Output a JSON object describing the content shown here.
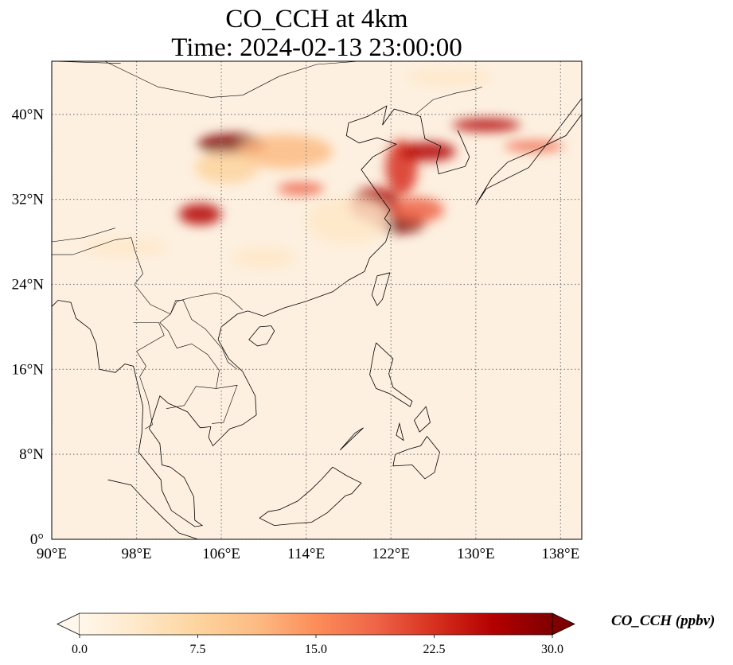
{
  "title": "CO_CCH at 4km",
  "subtitle": "Time: 2024-02-13 23:00:00",
  "map": {
    "extent": {
      "lon": [
        90,
        140
      ],
      "lat": [
        0,
        45
      ]
    },
    "lon_ticks": [
      {
        "value": 90,
        "label": "90°E"
      },
      {
        "value": 98,
        "label": "98°E"
      },
      {
        "value": 106,
        "label": "106°E"
      },
      {
        "value": 114,
        "label": "114°E"
      },
      {
        "value": 122,
        "label": "122°E"
      },
      {
        "value": 130,
        "label": "130°E"
      },
      {
        "value": 138,
        "label": "138°E"
      }
    ],
    "lat_ticks": [
      {
        "value": 0,
        "label": "0°"
      },
      {
        "value": 8,
        "label": "8°N"
      },
      {
        "value": 16,
        "label": "16°N"
      },
      {
        "value": 24,
        "label": "24°N"
      },
      {
        "value": 32,
        "label": "32°N"
      },
      {
        "value": 40,
        "label": "40°N"
      }
    ],
    "gridlines": "dotted",
    "plumes": [
      {
        "lon": 107.0,
        "lat": 37.2,
        "rx": 3.2,
        "ry": 1.0,
        "level": 30
      },
      {
        "lon": 112.0,
        "lat": 36.5,
        "rx": 4.5,
        "ry": 1.6,
        "level": 10
      },
      {
        "lon": 106.5,
        "lat": 35.0,
        "rx": 3.0,
        "ry": 1.5,
        "level": 8
      },
      {
        "lon": 104.0,
        "lat": 30.6,
        "rx": 2.0,
        "ry": 1.0,
        "level": 28
      },
      {
        "lon": 113.5,
        "lat": 33.0,
        "rx": 2.2,
        "ry": 0.6,
        "level": 20
      },
      {
        "lon": 120.5,
        "lat": 31.5,
        "rx": 2.4,
        "ry": 1.6,
        "level": 26
      },
      {
        "lon": 122.8,
        "lat": 29.8,
        "rx": 2.4,
        "ry": 1.0,
        "level": 30
      },
      {
        "lon": 124.5,
        "lat": 31.0,
        "rx": 2.5,
        "ry": 1.2,
        "level": 18
      },
      {
        "lon": 123.0,
        "lat": 35.0,
        "rx": 1.5,
        "ry": 2.6,
        "level": 24
      },
      {
        "lon": 125.5,
        "lat": 36.5,
        "rx": 2.6,
        "ry": 0.9,
        "level": 26
      },
      {
        "lon": 131.0,
        "lat": 39.0,
        "rx": 3.2,
        "ry": 0.6,
        "level": 28
      },
      {
        "lon": 135.5,
        "lat": 37.0,
        "rx": 2.8,
        "ry": 0.5,
        "level": 20
      },
      {
        "lon": 127.5,
        "lat": 43.5,
        "rx": 4.0,
        "ry": 0.8,
        "level": 5
      },
      {
        "lon": 110.0,
        "lat": 26.5,
        "rx": 3.0,
        "ry": 1.0,
        "level": 4
      },
      {
        "lon": 118.0,
        "lat": 30.0,
        "rx": 4.0,
        "ry": 2.2,
        "level": 5
      },
      {
        "lon": 97.0,
        "lat": 27.5,
        "rx": 4.0,
        "ry": 0.8,
        "level": 3
      }
    ]
  },
  "colorbar": {
    "label": "CO_CCH (ppbv)",
    "min": 0,
    "max": 30,
    "ticks": [
      {
        "value": 0,
        "label": "0.0"
      },
      {
        "value": 7.5,
        "label": "7.5"
      },
      {
        "value": 15,
        "label": "15.0"
      },
      {
        "value": 22.5,
        "label": "22.5"
      },
      {
        "value": 30,
        "label": "30.0"
      }
    ],
    "colormap": [
      "#fff7ec",
      "#fee8c8",
      "#fdd49e",
      "#fdbb84",
      "#fc8d59",
      "#ef6548",
      "#d7301f",
      "#b30000",
      "#7f0000"
    ],
    "extend": "both"
  }
}
